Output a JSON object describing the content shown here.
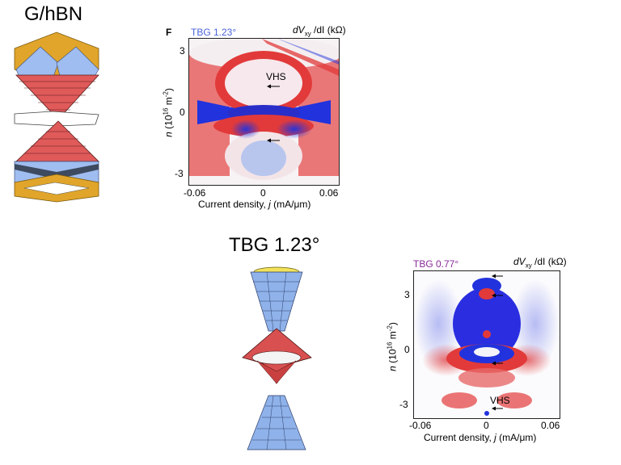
{
  "figure": {
    "ghbn_title": "G/hBN",
    "tbg123_title": "TBG 1.23°",
    "panel_F": {
      "letter": "F",
      "sample": "TBG 1.23°",
      "sample_color": "#4a64d8",
      "colorbar_title": "dV",
      "colorbar_sub": "xy",
      "colorbar_rest": " /dI (kΩ)",
      "vhs_label": "VHS",
      "y_ticks": [
        "3",
        "0",
        "-3"
      ],
      "x_ticks": [
        "-0.06",
        "0",
        "0.06"
      ],
      "ylabel_n": "n",
      "ylabel_rest": " (10",
      "ylabel_exp": "16",
      "ylabel_tail": " m",
      "ylabel_exp2": "-2",
      "ylabel_close": ")",
      "xlabel": "Current density, ",
      "xlabel_j": "j",
      "xlabel_tail": " (mA/μm)"
    },
    "panel_B": {
      "sample": "TBG 0.77°",
      "sample_color": "#8a2a9a",
      "colorbar_title": "dV",
      "colorbar_sub": "xy",
      "colorbar_rest": " /dI (kΩ)",
      "vhs_label": "VHS",
      "y_ticks": [
        "3",
        "0",
        "-3"
      ],
      "x_ticks": [
        "-0.06",
        "0",
        "0.06"
      ],
      "ylabel_n": "n",
      "ylabel_rest": " (10",
      "ylabel_exp": "16",
      "ylabel_tail": " m",
      "ylabel_exp2": "-2",
      "ylabel_close": ")",
      "xlabel": "Current density, ",
      "xlabel_j": "j",
      "xlabel_tail": " (mA/μm)"
    },
    "colors": {
      "red": "#e23a3a",
      "blue": "#2233dd",
      "band_red": "#e05a5a",
      "band_blue": "#8fb2ea",
      "band_gold": "#e0a52a"
    }
  }
}
